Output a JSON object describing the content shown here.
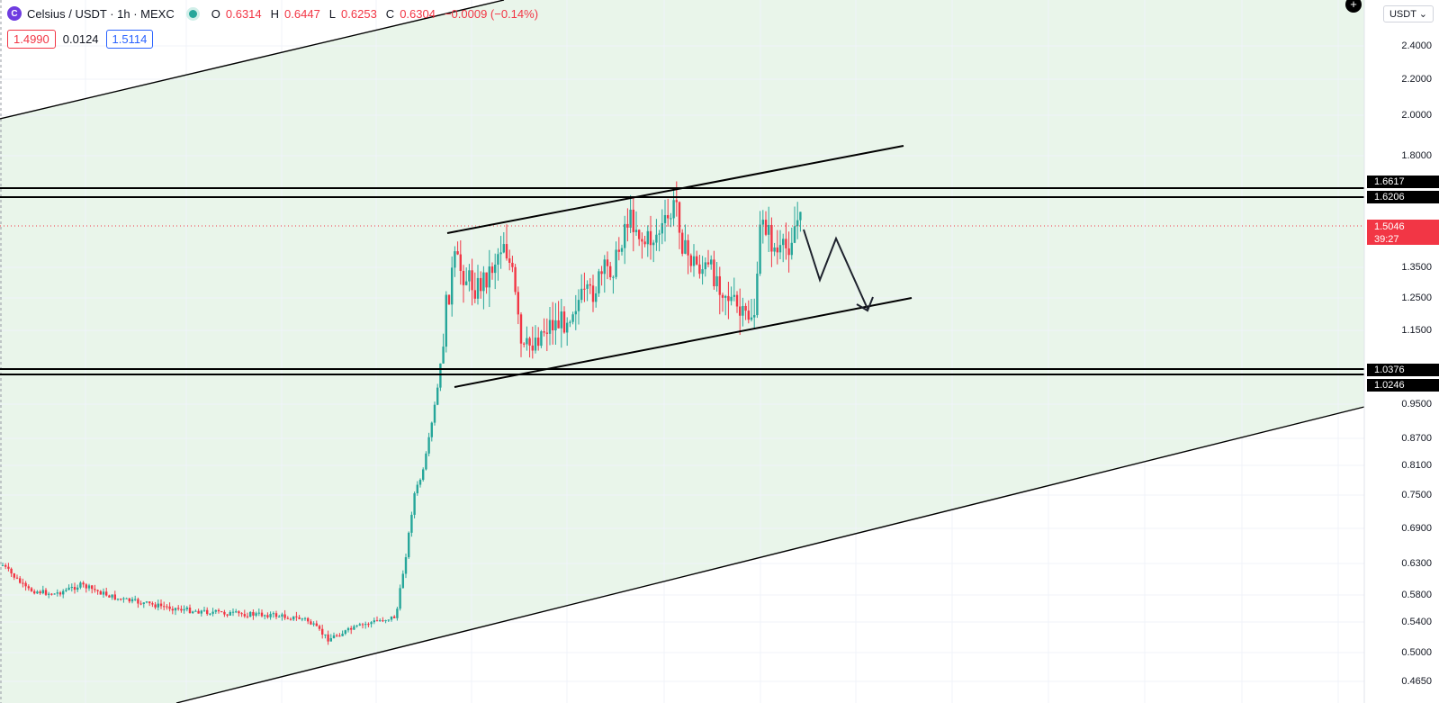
{
  "header": {
    "symbol": "Celsius / USDT · 1h · MEXC",
    "logo_icon": "celsius-logo-icon",
    "open_label": "O",
    "open": "0.6314",
    "high_label": "H",
    "high": "0.6447",
    "low_label": "L",
    "low": "0.6253",
    "close_label": "C",
    "close": "0.6304",
    "change": "−0.0009 (−0.14%)"
  },
  "trade": {
    "sell": "1.4990",
    "spread": "0.0124",
    "buy": "1.5114"
  },
  "currency_selector": "USDT",
  "axis": {
    "ticks": [
      "2.4000",
      "2.2000",
      "2.0000",
      "1.8000",
      "1.3500",
      "1.2500",
      "1.1500",
      "0.9500",
      "0.8700",
      "0.8100",
      "0.7500",
      "0.6900",
      "0.6300",
      "0.5800",
      "0.5400",
      "0.5000",
      "0.4650"
    ]
  },
  "price_tags": {
    "level1": "1.6617",
    "level2": "1.6206",
    "current_price": "1.5046",
    "countdown": "39:27",
    "level3": "1.0376",
    "level4": "1.0246"
  },
  "colors": {
    "up": "#26a69a",
    "down": "#f23645",
    "zone": "#e9f5ea",
    "line": "#000000"
  }
}
